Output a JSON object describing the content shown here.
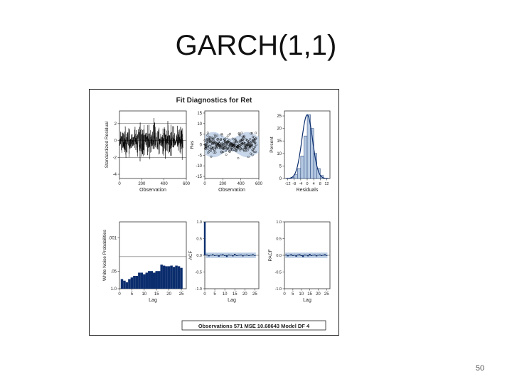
{
  "slide": {
    "title": "GARCH(1,1)",
    "page_number": "50"
  },
  "figure": {
    "title": "Fit Diagnostics for Ret",
    "footer": "Observations 571   MSE 10.68643   Model DF 4"
  },
  "colors": {
    "navy": "#0b2d6e",
    "band": "#b9cce3",
    "hist_fill": "#b5c9e2",
    "line": "#000000",
    "ref": "#444444"
  },
  "chart_data": [
    {
      "type": "line",
      "panel": "standardized-residual",
      "xlabel": "Observation",
      "ylabel": "Standardized Residual",
      "xlim": [
        0,
        600
      ],
      "ylim": [
        -4.5,
        3.5
      ],
      "xticks": [
        0,
        200,
        400,
        600
      ],
      "yticks": [
        -4,
        -2,
        0,
        2
      ],
      "reference_lines": [
        -2,
        0,
        2
      ],
      "n": 571
    },
    {
      "type": "scatter",
      "panel": "residual-by-observation",
      "xlabel": "Observation",
      "ylabel": "Res",
      "xlim": [
        0,
        600
      ],
      "ylim": [
        -16,
        16
      ],
      "xticks": [
        0,
        200,
        400,
        600
      ],
      "yticks": [
        -15,
        -10,
        -5,
        0,
        5,
        10,
        15
      ],
      "n": 571
    },
    {
      "type": "bar",
      "panel": "residual-histogram",
      "xlabel": "Residuals",
      "ylabel": "Percent",
      "xlim": [
        -14,
        14
      ],
      "ylim": [
        0,
        27
      ],
      "xticks": [
        -12,
        -8,
        -4,
        0,
        4,
        8,
        12
      ],
      "yticks": [
        0,
        5,
        10,
        15,
        20,
        25
      ],
      "bin_width": 2,
      "bin_starts": [
        -10,
        -8,
        -6,
        -4,
        -2,
        0,
        2,
        4,
        6,
        8
      ],
      "values": [
        0.5,
        1.5,
        4,
        9,
        17,
        25.5,
        20,
        10,
        4,
        1.2
      ]
    },
    {
      "type": "bar",
      "panel": "white-noise-probabilities",
      "xlabel": "Lag",
      "ylabel": "White Noise Probabilities",
      "xlim": [
        0,
        27
      ],
      "xticks": [
        0,
        5,
        10,
        15,
        20,
        25
      ],
      "ytick_labels": [
        ".001",
        ".05",
        "1.0"
      ],
      "reference_line": ".05",
      "lags": [
        1,
        2,
        3,
        4,
        5,
        6,
        7,
        8,
        9,
        10,
        11,
        12,
        13,
        14,
        15,
        16,
        17,
        18,
        19,
        20,
        21,
        22,
        23,
        24,
        25
      ],
      "values": [
        0.3,
        0.25,
        0.2,
        0.3,
        0.35,
        0.4,
        0.4,
        0.5,
        0.5,
        0.45,
        0.5,
        0.55,
        0.55,
        0.5,
        0.55,
        0.55,
        0.75,
        0.72,
        0.7,
        0.7,
        0.72,
        0.68,
        0.72,
        0.7,
        0.65
      ]
    },
    {
      "type": "bar",
      "panel": "acf",
      "xlabel": "Lag",
      "ylabel": "ACF",
      "xlim": [
        0,
        27
      ],
      "ylim": [
        -1,
        1
      ],
      "xticks": [
        0,
        5,
        10,
        15,
        20,
        25
      ],
      "yticks": [
        -1.0,
        -0.5,
        0.0,
        0.5,
        1.0
      ],
      "band": 0.08,
      "lags": [
        0,
        1,
        2,
        3,
        4,
        5,
        6,
        7,
        8,
        9,
        10,
        11,
        12,
        13,
        14,
        15,
        16,
        17,
        18,
        19,
        20,
        21,
        22,
        23,
        24,
        25
      ],
      "values": [
        1.0,
        0.02,
        -0.03,
        0.01,
        0.03,
        -0.02,
        0.01,
        -0.04,
        0.02,
        0.03,
        -0.02,
        -0.05,
        0.02,
        0.01,
        -0.03,
        0.04,
        -0.02,
        0.01,
        0.02,
        -0.03,
        0.01,
        0.02,
        -0.02,
        0.01,
        0.03,
        -0.01
      ]
    },
    {
      "type": "bar",
      "panel": "pacf",
      "xlabel": "Lag",
      "ylabel": "PACF",
      "xlim": [
        0,
        27
      ],
      "ylim": [
        -1,
        1
      ],
      "xticks": [
        0,
        5,
        10,
        15,
        20,
        25
      ],
      "yticks": [
        -1.0,
        -0.5,
        0.0,
        0.5,
        1.0
      ],
      "band": 0.08,
      "lags": [
        1,
        2,
        3,
        4,
        5,
        6,
        7,
        8,
        9,
        10,
        11,
        12,
        13,
        14,
        15,
        16,
        17,
        18,
        19,
        20,
        21,
        22,
        23,
        24,
        25
      ],
      "values": [
        0.02,
        -0.03,
        0.01,
        0.03,
        -0.02,
        0.01,
        -0.04,
        0.02,
        0.03,
        -0.02,
        -0.05,
        0.02,
        0.01,
        -0.03,
        0.04,
        -0.02,
        0.01,
        0.02,
        -0.03,
        0.01,
        0.02,
        -0.02,
        0.01,
        0.03,
        -0.01
      ]
    }
  ]
}
